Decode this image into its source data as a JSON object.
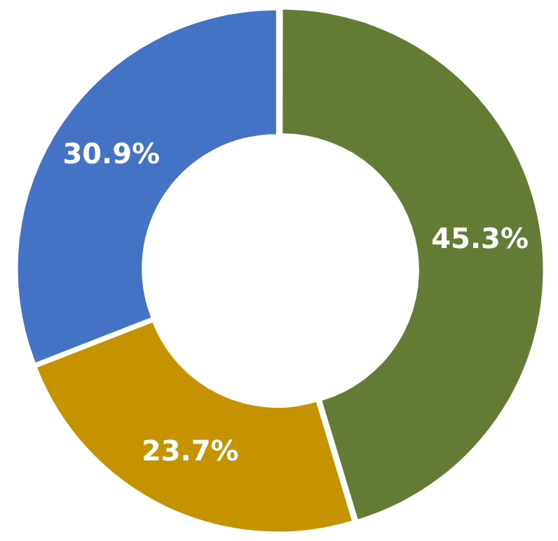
{
  "chart_data": {
    "type": "donut",
    "categories": [
      null,
      null,
      null
    ],
    "values": [
      45.3,
      23.7,
      30.9
    ],
    "colors": [
      "#647b35",
      "#c59300",
      "#4472c4"
    ],
    "value_labels": [
      "45.3%",
      "23.7%",
      "30.9%"
    ],
    "legend": false
  }
}
